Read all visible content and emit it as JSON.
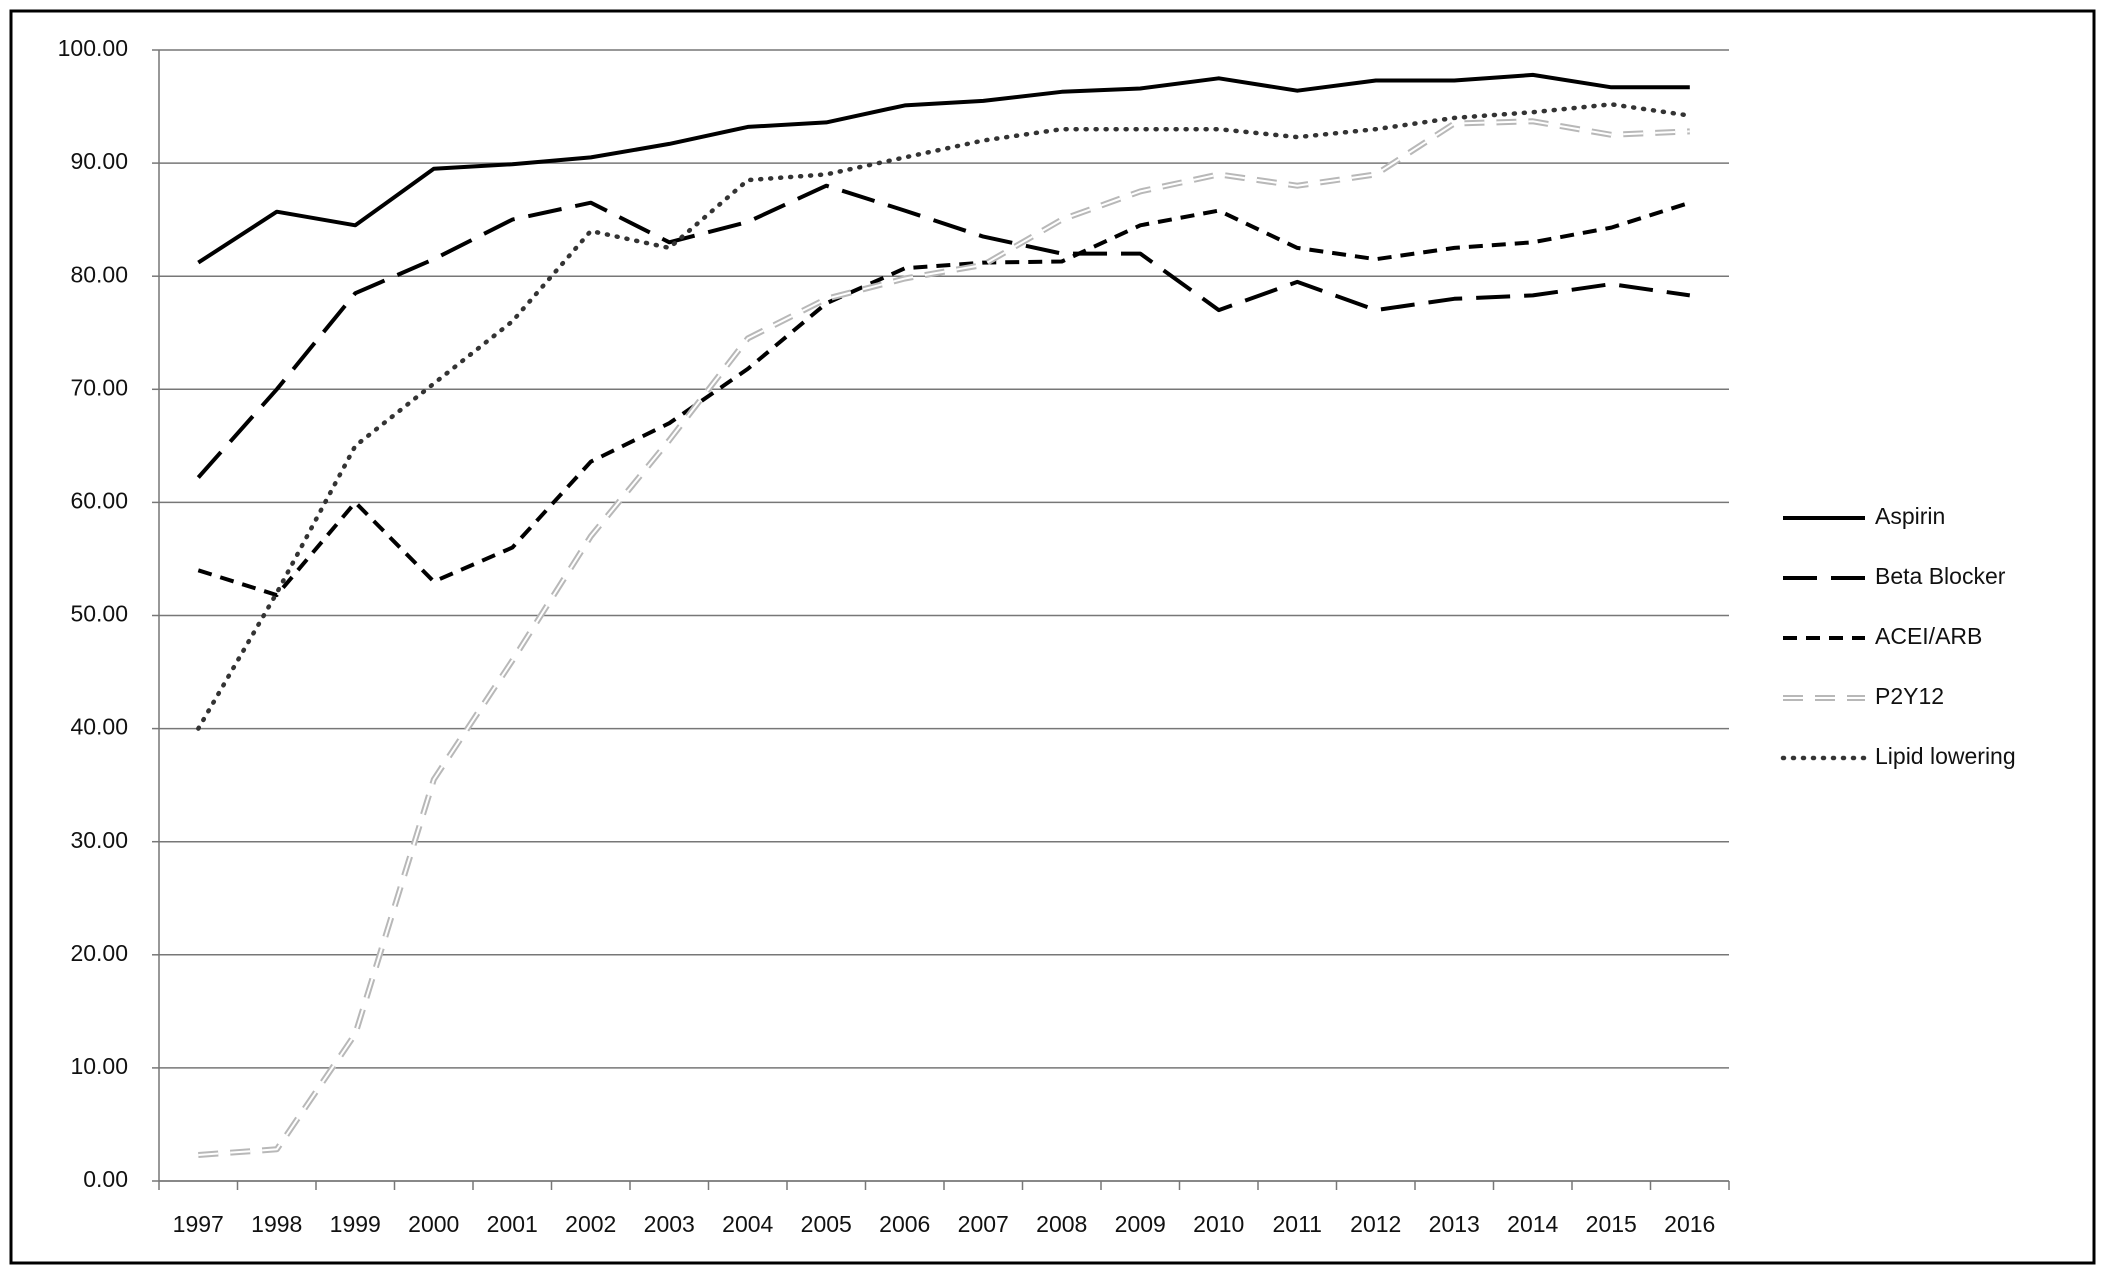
{
  "chart_data": {
    "type": "line",
    "categories": [
      "1997",
      "1998",
      "1999",
      "2000",
      "2001",
      "2002",
      "2003",
      "2004",
      "2005",
      "2006",
      "2007",
      "2008",
      "2009",
      "2010",
      "2011",
      "2012",
      "2013",
      "2014",
      "2015",
      "2016"
    ],
    "series": [
      {
        "name": "Aspirin",
        "color": "#000000",
        "values": [
          81.2,
          85.7,
          84.5,
          89.5,
          89.9,
          90.5,
          91.7,
          93.2,
          93.6,
          95.1,
          95.5,
          96.3,
          96.6,
          97.5,
          96.4,
          97.3,
          97.3,
          97.8,
          96.7,
          96.7
        ]
      },
      {
        "name": "Beta Blocker",
        "color": "#000000",
        "values": [
          62.2,
          70,
          78.5,
          81.5,
          85,
          86.5,
          83,
          84.8,
          88,
          85.8,
          83.5,
          82,
          82,
          77,
          79.5,
          77,
          78,
          78.3,
          79.3,
          78.3
        ]
      },
      {
        "name": "ACEI/ARB",
        "color": "#000000",
        "values": [
          54,
          51.8,
          60,
          53,
          56,
          63.6,
          67,
          71.8,
          77.6,
          80.7,
          81.2,
          81.3,
          84.5,
          85.8,
          82.5,
          81.5,
          82.5,
          83,
          84.3,
          86.5
        ]
      },
      {
        "name": "P2Y12",
        "color": "#b8b8b8",
        "values": [
          2.3,
          2.8,
          13,
          35.5,
          46,
          57,
          65.5,
          74.5,
          78,
          79.8,
          81,
          85,
          87.5,
          89,
          88,
          89,
          93.5,
          93.7,
          92.5,
          92.8
        ]
      },
      {
        "name": "Lipid lowering",
        "color": "#333333",
        "values": [
          40,
          52,
          65,
          70.5,
          76,
          84,
          82.5,
          88.5,
          89,
          90.5,
          92,
          93,
          93,
          93,
          92.3,
          93,
          94,
          94.5,
          95.2,
          94.2
        ]
      }
    ],
    "ylim": [
      0,
      100
    ],
    "yticks": [
      {
        "value": 0,
        "label": "0.00"
      },
      {
        "value": 10,
        "label": "10.00"
      },
      {
        "value": 20,
        "label": "20.00"
      },
      {
        "value": 30,
        "label": "30.00"
      },
      {
        "value": 40,
        "label": "40.00"
      },
      {
        "value": 50,
        "label": "50.00"
      },
      {
        "value": 60,
        "label": "60.00"
      },
      {
        "value": 70,
        "label": "70.00"
      },
      {
        "value": 80,
        "label": "80.00"
      },
      {
        "value": 90,
        "label": "90.00"
      },
      {
        "value": 100,
        "label": "100.00"
      }
    ],
    "grid": true,
    "legend": "right"
  }
}
